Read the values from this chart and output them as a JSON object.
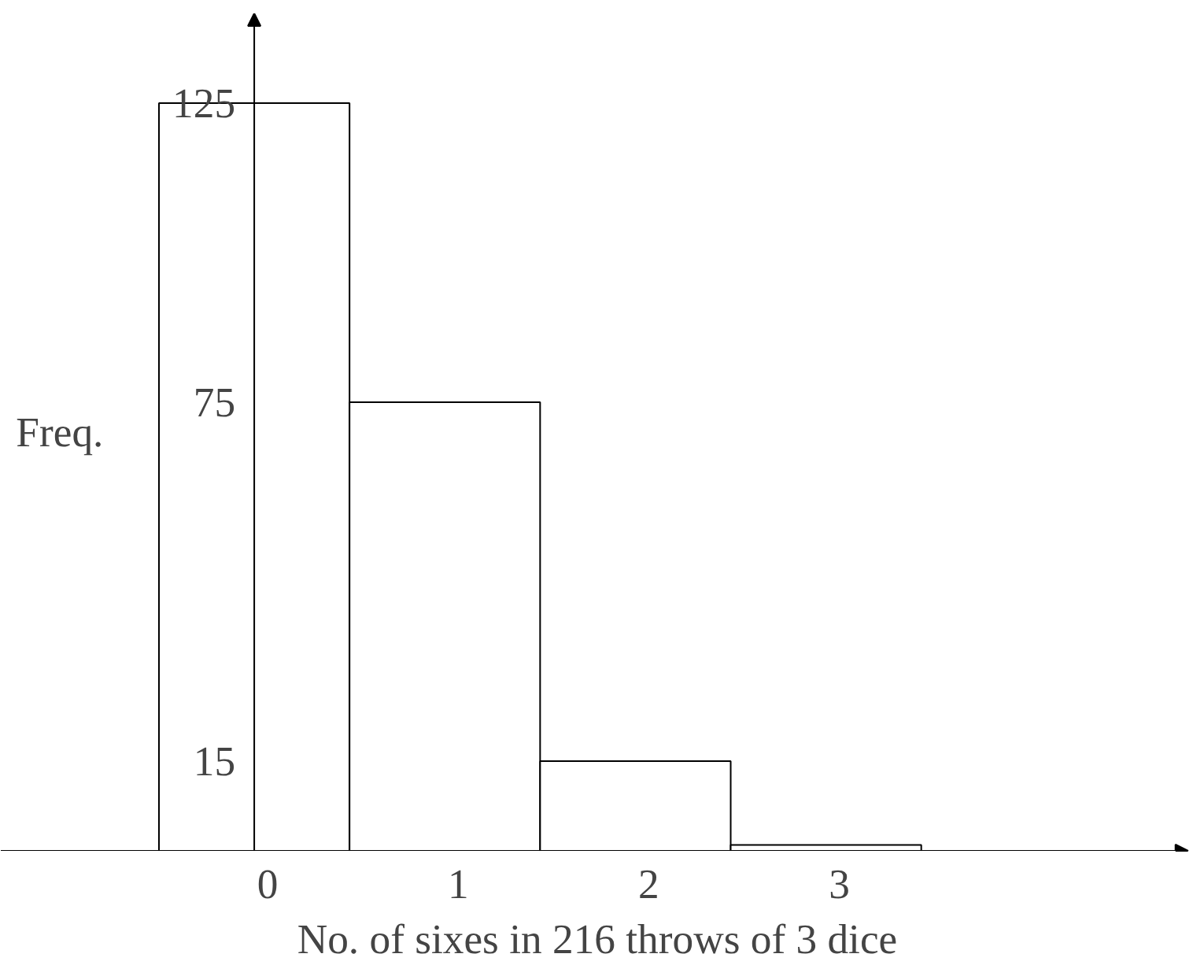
{
  "chart_data": {
    "type": "bar",
    "xlabel": "No. of sixes in 216 throws of 3 dice",
    "ylabel": "Freq.",
    "categories": [
      "0",
      "1",
      "2",
      "3"
    ],
    "values": [
      125,
      75,
      15,
      1
    ],
    "color": "#ffffff",
    "ylim": [
      0,
      140
    ],
    "yticks": [
      15,
      75,
      125
    ],
    "grid": false
  }
}
